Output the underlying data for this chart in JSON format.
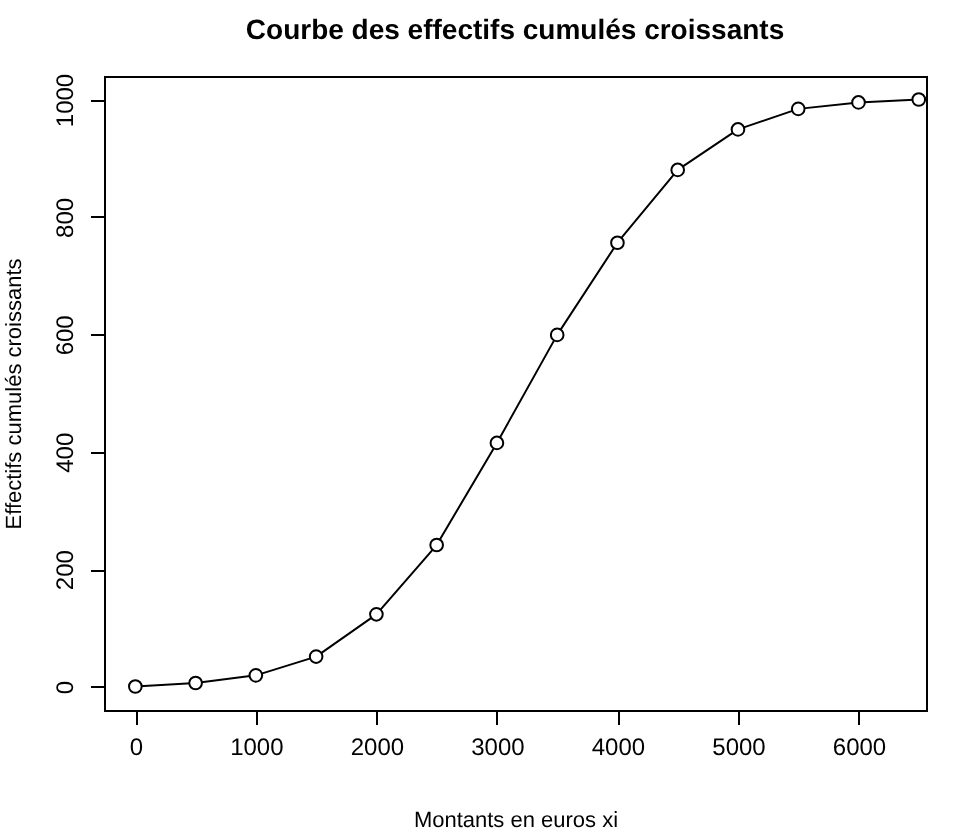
{
  "chart_data": {
    "type": "line",
    "title": "Courbe des effectifs cumulés croissants",
    "xlabel": "Montants en euros xi",
    "ylabel": "Effectifs cumulés croissants",
    "x": [
      0,
      500,
      1000,
      1500,
      2000,
      2500,
      3000,
      3500,
      4000,
      4500,
      5000,
      5500,
      6000,
      6500
    ],
    "series": [
      {
        "color": "#000000",
        "values": [
          0,
          6,
          19,
          51,
          123,
          241,
          415,
          599,
          756,
          880,
          949,
          984,
          995,
          1000
        ]
      }
    ],
    "xlim": [
      -260,
      6560
    ],
    "xticks": [
      0,
      1000,
      2000,
      3000,
      4000,
      5000,
      6000
    ],
    "ylim": [
      -40,
      1040
    ],
    "yticks": [
      0,
      200,
      400,
      600,
      800,
      1000
    ],
    "grid": false,
    "legend": false,
    "marker": "circle",
    "line_style": "solid"
  }
}
